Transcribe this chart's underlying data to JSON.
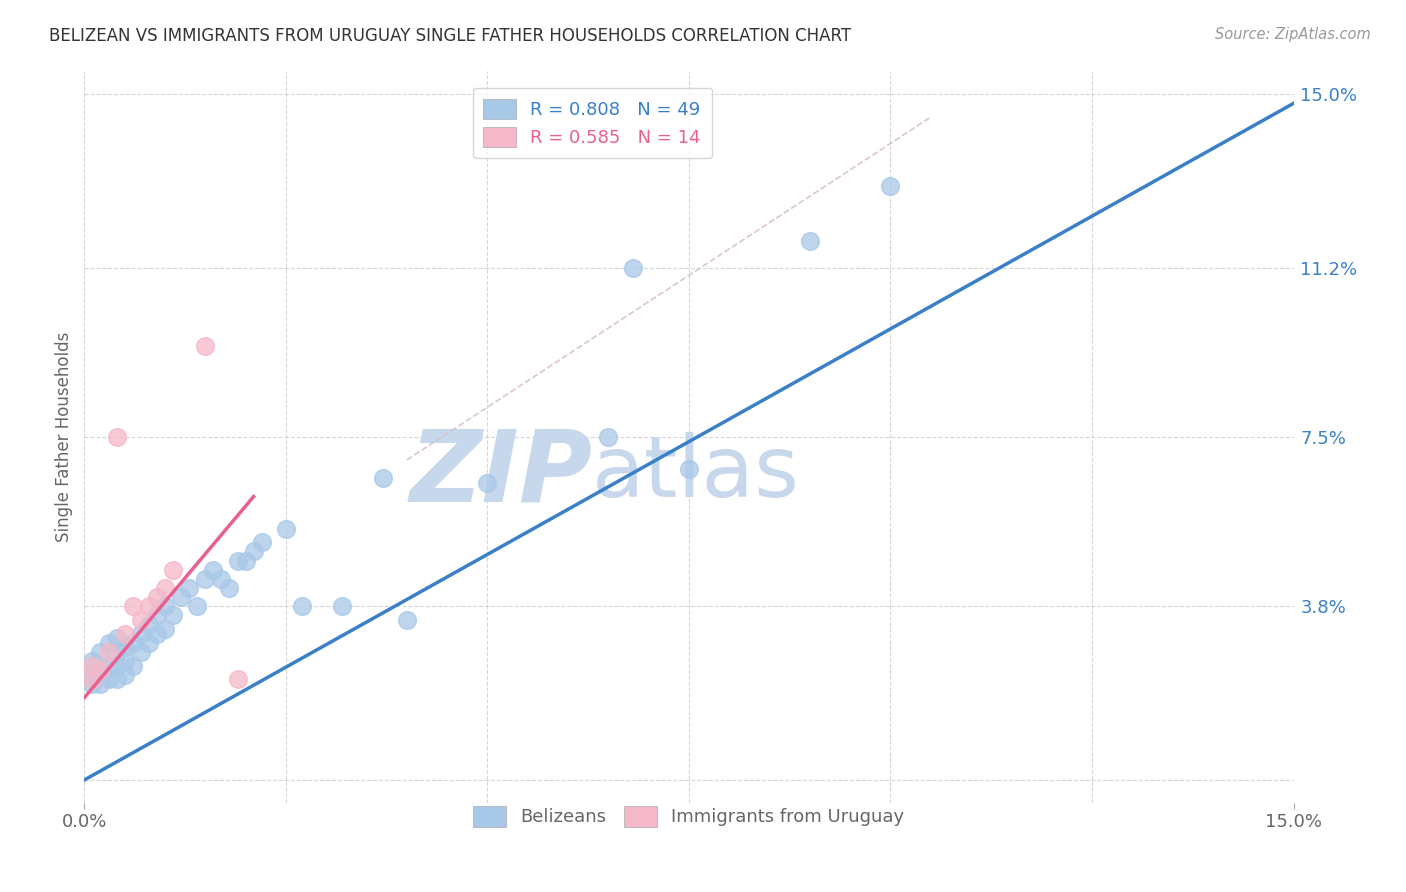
{
  "title": "BELIZEAN VS IMMIGRANTS FROM URUGUAY SINGLE FATHER HOUSEHOLDS CORRELATION CHART",
  "source": "Source: ZipAtlas.com",
  "ylabel": "Single Father Households",
  "xlim": [
    0,
    0.15
  ],
  "ylim": [
    -0.005,
    0.155
  ],
  "ytick_vals": [
    0.038,
    0.075,
    0.112,
    0.15
  ],
  "ytick_labels": [
    "3.8%",
    "7.5%",
    "11.2%",
    "15.0%"
  ],
  "xtick_vals": [
    0.0,
    0.15
  ],
  "xtick_labels": [
    "0.0%",
    "15.0%"
  ],
  "grid_yticks": [
    0.0,
    0.038,
    0.075,
    0.112,
    0.15
  ],
  "grid_xticks": [
    0.0,
    0.025,
    0.05,
    0.075,
    0.1,
    0.125,
    0.15
  ],
  "watermark_zip": "ZIP",
  "watermark_atlas": "atlas",
  "watermark_zip_color": "#c8d8ec",
  "watermark_atlas_color": "#c8d8ec",
  "background_color": "#ffffff",
  "grid_color": "#cccccc",
  "blue_scatter_color": "#a8c8e8",
  "pink_scatter_color": "#f4b8c8",
  "blue_line_color": "#3a80c8",
  "pink_line_color": "#e86090",
  "diag_line_color": "#d8c0c8",
  "legend_blue_label": "R = 0.808   N = 49",
  "legend_pink_label": "R = 0.585   N = 14",
  "bottom_label_blue": "Belizeans",
  "bottom_label_pink": "Immigrants from Uruguay",
  "blue_line_x0": 0.0,
  "blue_line_y0": 0.0,
  "blue_line_x1": 0.15,
  "blue_line_y1": 0.148,
  "pink_line_x0": 0.0,
  "pink_line_y0": 0.018,
  "pink_line_x1": 0.021,
  "pink_line_y1": 0.062,
  "diag_line_x0": 0.04,
  "diag_line_y0": 0.07,
  "diag_line_x1": 0.105,
  "diag_line_y1": 0.145,
  "blue_points_x": [
    0.001,
    0.001,
    0.001,
    0.002,
    0.002,
    0.002,
    0.003,
    0.003,
    0.003,
    0.004,
    0.004,
    0.004,
    0.004,
    0.005,
    0.005,
    0.005,
    0.006,
    0.006,
    0.007,
    0.007,
    0.008,
    0.008,
    0.009,
    0.009,
    0.01,
    0.01,
    0.011,
    0.012,
    0.013,
    0.014,
    0.015,
    0.016,
    0.017,
    0.018,
    0.019,
    0.02,
    0.021,
    0.022,
    0.025,
    0.027,
    0.032,
    0.037,
    0.04,
    0.05,
    0.065,
    0.068,
    0.075,
    0.09,
    0.1
  ],
  "blue_points_y": [
    0.021,
    0.023,
    0.026,
    0.021,
    0.024,
    0.028,
    0.022,
    0.025,
    0.03,
    0.022,
    0.025,
    0.028,
    0.031,
    0.023,
    0.026,
    0.029,
    0.025,
    0.03,
    0.028,
    0.032,
    0.03,
    0.034,
    0.032,
    0.036,
    0.033,
    0.038,
    0.036,
    0.04,
    0.042,
    0.038,
    0.044,
    0.046,
    0.044,
    0.042,
    0.048,
    0.048,
    0.05,
    0.052,
    0.055,
    0.038,
    0.038,
    0.066,
    0.035,
    0.065,
    0.075,
    0.112,
    0.068,
    0.118,
    0.13
  ],
  "pink_points_x": [
    0.001,
    0.001,
    0.002,
    0.003,
    0.004,
    0.005,
    0.006,
    0.007,
    0.008,
    0.009,
    0.01,
    0.011,
    0.015,
    0.019
  ],
  "pink_points_y": [
    0.022,
    0.025,
    0.024,
    0.028,
    0.075,
    0.032,
    0.038,
    0.035,
    0.038,
    0.04,
    0.042,
    0.046,
    0.095,
    0.022
  ]
}
